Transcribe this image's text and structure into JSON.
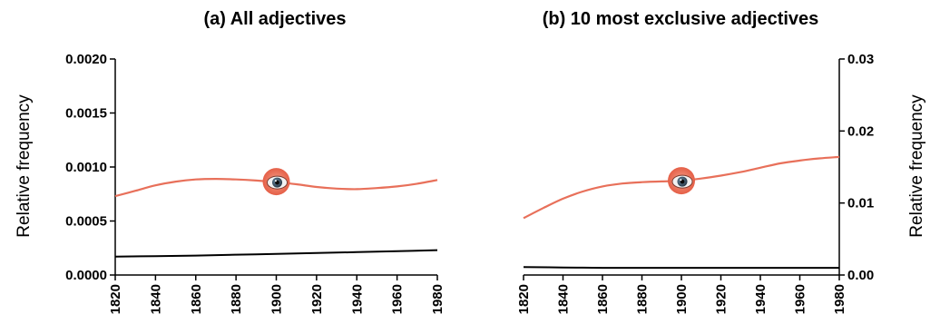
{
  "chart_data": [
    {
      "type": "line",
      "title": "(a) All adjectives",
      "xlabel": "",
      "ylabel": "Relative frequency",
      "xlim": [
        1820,
        1980
      ],
      "ylim": [
        0,
        0.002
      ],
      "x_ticks": [
        "1820",
        "1840",
        "1860",
        "1880",
        "1900",
        "1920",
        "1940",
        "1960",
        "1980"
      ],
      "y_ticks": [
        "0.0000",
        "0.0005",
        "0.0010",
        "0.0015",
        "0.0020"
      ],
      "y_axis_side": "left",
      "series": [
        {
          "color": "#e8705a",
          "x": [
            1820,
            1830,
            1840,
            1850,
            1860,
            1870,
            1880,
            1890,
            1900,
            1910,
            1920,
            1930,
            1940,
            1950,
            1960,
            1970,
            1980
          ],
          "values": [
            0.00073,
            0.00078,
            0.00083,
            0.000865,
            0.000885,
            0.00089,
            0.000885,
            0.000875,
            0.00086,
            0.00084,
            0.000815,
            0.0008,
            0.000795,
            0.000805,
            0.00082,
            0.000845,
            0.00088
          ]
        },
        {
          "color": "#000000",
          "x": [
            1820,
            1840,
            1860,
            1880,
            1900,
            1920,
            1940,
            1960,
            1980
          ],
          "values": [
            0.00017,
            0.000175,
            0.00018,
            0.000188,
            0.000195,
            0.000203,
            0.000212,
            0.00022,
            0.00023
          ]
        }
      ],
      "marker": {
        "x": 1900,
        "y": 0.000865,
        "icon": "eye-icon",
        "color": "#e8705a"
      }
    },
    {
      "type": "line",
      "title": "(b) 10 most exclusive adjectives",
      "xlabel": "",
      "ylabel": "Relative frequency",
      "xlim": [
        1820,
        1980
      ],
      "ylim": [
        0,
        0.03
      ],
      "x_ticks": [
        "1820",
        "1840",
        "1860",
        "1880",
        "1900",
        "1920",
        "1940",
        "1960",
        "1980"
      ],
      "y_ticks": [
        "0.00",
        "0.01",
        "0.02",
        "0.03"
      ],
      "y_axis_side": "right",
      "series": [
        {
          "color": "#e8705a",
          "x": [
            1820,
            1830,
            1840,
            1850,
            1860,
            1870,
            1880,
            1890,
            1900,
            1910,
            1920,
            1930,
            1940,
            1950,
            1960,
            1970,
            1980
          ],
          "values": [
            0.0079,
            0.0093,
            0.0106,
            0.0116,
            0.0123,
            0.0127,
            0.0129,
            0.013,
            0.0131,
            0.0134,
            0.0138,
            0.0143,
            0.0149,
            0.0155,
            0.0159,
            0.0162,
            0.0164
          ]
        },
        {
          "color": "#000000",
          "x": [
            1820,
            1840,
            1860,
            1880,
            1900,
            1920,
            1940,
            1960,
            1980
          ],
          "values": [
            0.0011,
            0.00105,
            0.001,
            0.001,
            0.001,
            0.001,
            0.001,
            0.001,
            0.001
          ]
        }
      ],
      "marker": {
        "x": 1900,
        "y": 0.0131,
        "icon": "eye-icon",
        "color": "#e8705a"
      }
    }
  ]
}
